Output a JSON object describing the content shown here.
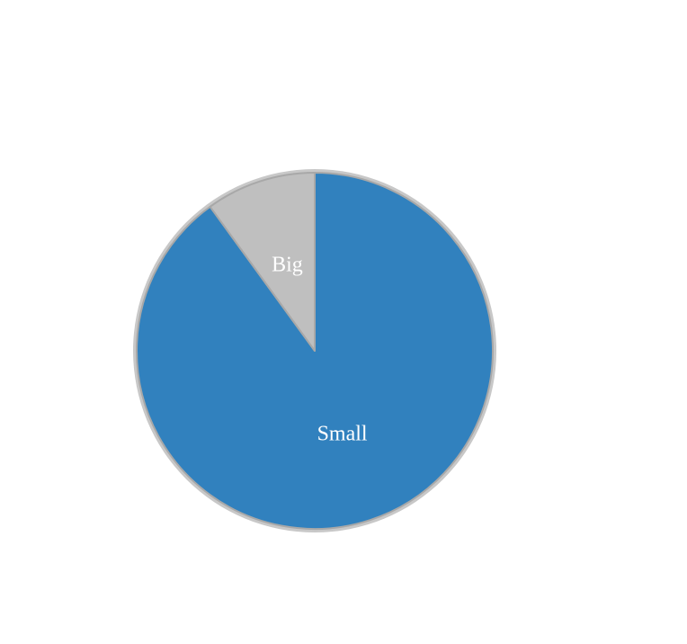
{
  "chart_data": {
    "type": "pie",
    "categories": [
      "Small",
      "Big"
    ],
    "values": [
      90,
      10
    ],
    "colors": [
      "#3181be",
      "#bfbfbf"
    ]
  }
}
